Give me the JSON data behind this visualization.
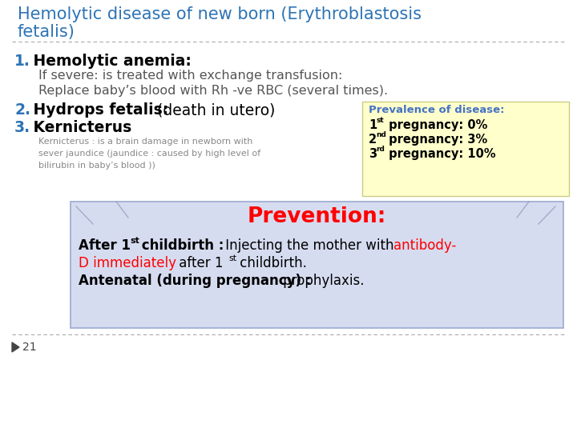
{
  "title_line1": "Hemolytic disease of new born (Erythroblastosis",
  "title_line2": "fetalis)",
  "title_color": "#2E74B5",
  "bg_color": "#FFFFFF",
  "item1_num": "1.",
  "item1_text": " Hemolytic anemia:",
  "item1_sub1": "If severe: is treated with exchange transfusion:",
  "item1_sub2": "Replace baby’s blood with Rh -ve RBC (several times).",
  "item2_num": "2.",
  "item2_bold": " Hydrops fetalis:",
  "item2_normal": " (death in utero)",
  "item3_num": "3.",
  "item3_text": " Kernicterus",
  "item3_sub": "Kernicterus : is a brain damage in newborn with\nsever jaundice (jaundice : caused by high level of\nbilirubin in baby’s blood ))",
  "prevalence_title": "Prevalence of disease:",
  "prevalence_bg": "#FFFFCC",
  "prevalence_border": "#CCCC88",
  "prevalence_title_color": "#4472C4",
  "prevalence_text_color": "#000000",
  "prevention_title": "Prevention:",
  "prevention_title_color": "#FF0000",
  "prevention_bg": "#D6DCF0",
  "prevention_border": "#9BAAD0",
  "num_color": "#2E74B5",
  "bold_color": "#000000",
  "normal_color": "#555555",
  "sub_color": "#888888",
  "footer_num": "21",
  "separator_color": "#AAAAAA"
}
